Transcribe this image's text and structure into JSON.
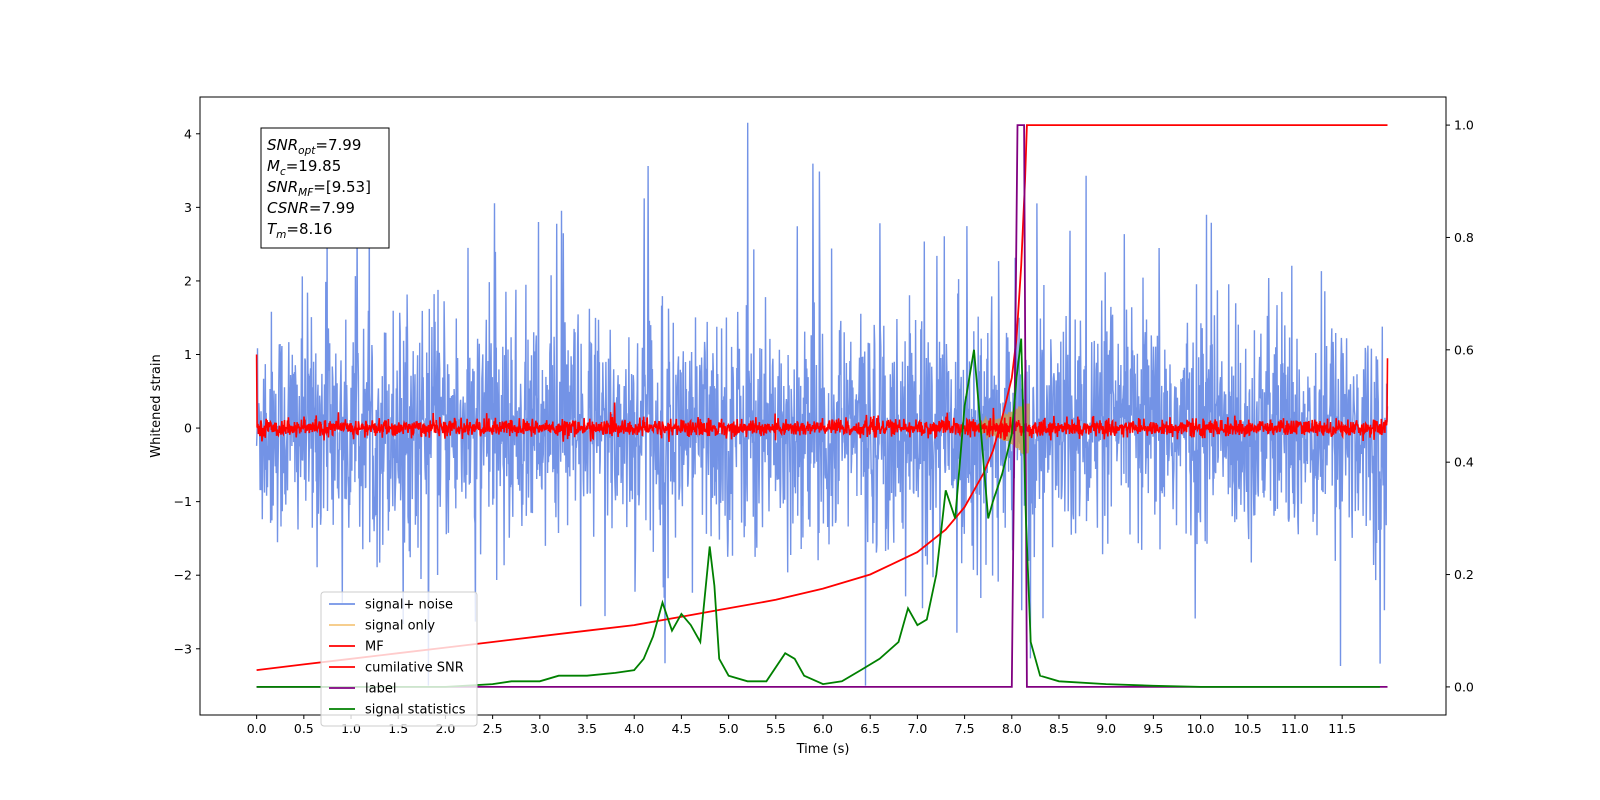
{
  "chart_data": {
    "type": "line",
    "xlabel": "Time (s)",
    "ylabel": "Whitened strain",
    "xlim": [
      -0.6,
      12.6
    ],
    "ylim": [
      -3.9,
      4.5
    ],
    "y2lim": [
      -0.05,
      1.05
    ],
    "x_ticks": [
      0.0,
      0.5,
      1.0,
      1.5,
      2.0,
      2.5,
      3.0,
      3.5,
      4.0,
      4.5,
      5.0,
      5.5,
      6.0,
      6.5,
      7.0,
      7.5,
      8.0,
      8.5,
      9.0,
      9.5,
      10.0,
      10.5,
      11.0,
      11.5
    ],
    "x_tick_labels": [
      "0.0",
      "0.5",
      "1.0",
      "1.5",
      "2.0",
      "2.5",
      "3.0",
      "3.5",
      "4.0",
      "4.5",
      "5.0",
      "5.5",
      "6.0",
      "6.5",
      "7.0",
      "7.5",
      "8.0",
      "8.5",
      "9.0",
      "9.5",
      "10.0",
      "10.5",
      "11.0",
      "11.5"
    ],
    "y_ticks": [
      -3,
      -2,
      -1,
      0,
      1,
      2,
      3,
      4
    ],
    "y_tick_labels": [
      "−3",
      "−2",
      "−1",
      "0",
      "1",
      "2",
      "3",
      "4"
    ],
    "y2_ticks": [
      0.0,
      0.2,
      0.4,
      0.6,
      0.8,
      1.0
    ],
    "y2_tick_labels": [
      "0.0",
      "0.2",
      "0.4",
      "0.6",
      "0.8",
      "1.0"
    ],
    "grid": false,
    "legend_position": "lower-left",
    "info_box": {
      "lines": [
        {
          "base": "SNR",
          "sub": "opt",
          "rest": "=7.99"
        },
        {
          "base": "M",
          "sub": "c",
          "rest": "=19.85"
        },
        {
          "base": "SNR",
          "sub": "MF",
          "rest": "=[9.53]"
        },
        {
          "base": "CSNR",
          "sub": "",
          "rest": "=7.99"
        },
        {
          "base": "T",
          "sub": "m",
          "rest": "=8.16"
        }
      ]
    },
    "series": [
      {
        "name": "signal+ noise",
        "color": "#7393e6",
        "axis": "left",
        "kind": "noise",
        "duration": [
          0.0,
          11.98
        ],
        "std": 0.78,
        "envelope": [
          -2.0,
          2.6
        ],
        "max_spike": 4.17
      },
      {
        "name": "signal only",
        "color": "#f5c77e",
        "axis": "left",
        "kind": "chirp",
        "x_range": [
          7.6,
          8.16
        ],
        "amplitude_peak": 0.35
      },
      {
        "name": "MF",
        "color": "#ff0000",
        "axis": "left",
        "kind": "noise",
        "duration": [
          0.0,
          11.98
        ],
        "std": 0.06,
        "edge_values": [
          1.0,
          0.95
        ]
      },
      {
        "name": "cumilative SNR",
        "color": "#ff0000",
        "axis": "right",
        "x": [
          0.0,
          0.5,
          1.0,
          1.5,
          2.0,
          2.5,
          3.0,
          3.5,
          4.0,
          4.5,
          5.0,
          5.5,
          6.0,
          6.5,
          7.0,
          7.3,
          7.5,
          7.7,
          7.8,
          7.9,
          8.0,
          8.05,
          8.1,
          8.14,
          8.16,
          11.98
        ],
        "y": [
          0.03,
          0.04,
          0.05,
          0.06,
          0.07,
          0.08,
          0.09,
          0.1,
          0.11,
          0.125,
          0.14,
          0.155,
          0.175,
          0.2,
          0.24,
          0.28,
          0.32,
          0.38,
          0.42,
          0.48,
          0.55,
          0.62,
          0.75,
          0.9,
          1.0,
          1.0
        ]
      },
      {
        "name": "label",
        "color": "#800080",
        "axis": "right",
        "x": [
          0.0,
          8.0,
          8.06,
          8.13,
          8.16,
          11.98
        ],
        "y": [
          0.0,
          0.0,
          1.0,
          1.0,
          0.0,
          0.0
        ]
      },
      {
        "name": "signal statistics",
        "color": "#008000",
        "axis": "right",
        "x": [
          0.0,
          0.5,
          1.0,
          1.5,
          2.0,
          2.5,
          2.7,
          3.0,
          3.2,
          3.5,
          3.8,
          4.0,
          4.1,
          4.2,
          4.3,
          4.4,
          4.5,
          4.6,
          4.7,
          4.8,
          4.85,
          4.9,
          5.0,
          5.2,
          5.4,
          5.6,
          5.7,
          5.8,
          6.0,
          6.2,
          6.4,
          6.6,
          6.8,
          6.9,
          7.0,
          7.1,
          7.2,
          7.3,
          7.4,
          7.5,
          7.55,
          7.6,
          7.65,
          7.7,
          7.75,
          7.8,
          7.9,
          8.0,
          8.05,
          8.1,
          8.15,
          8.2,
          8.3,
          8.5,
          9.0,
          9.5,
          10.0,
          11.0,
          11.9
        ],
        "y": [
          0.0,
          0.0,
          0.0,
          0.0,
          0.0,
          0.005,
          0.01,
          0.01,
          0.02,
          0.02,
          0.025,
          0.03,
          0.05,
          0.09,
          0.15,
          0.1,
          0.13,
          0.11,
          0.08,
          0.25,
          0.18,
          0.05,
          0.02,
          0.01,
          0.01,
          0.06,
          0.05,
          0.02,
          0.005,
          0.01,
          0.03,
          0.05,
          0.08,
          0.14,
          0.11,
          0.12,
          0.2,
          0.35,
          0.3,
          0.5,
          0.55,
          0.6,
          0.5,
          0.4,
          0.3,
          0.33,
          0.38,
          0.45,
          0.55,
          0.62,
          0.3,
          0.08,
          0.02,
          0.01,
          0.005,
          0.002,
          0.0,
          0.0,
          0.0
        ]
      }
    ]
  }
}
